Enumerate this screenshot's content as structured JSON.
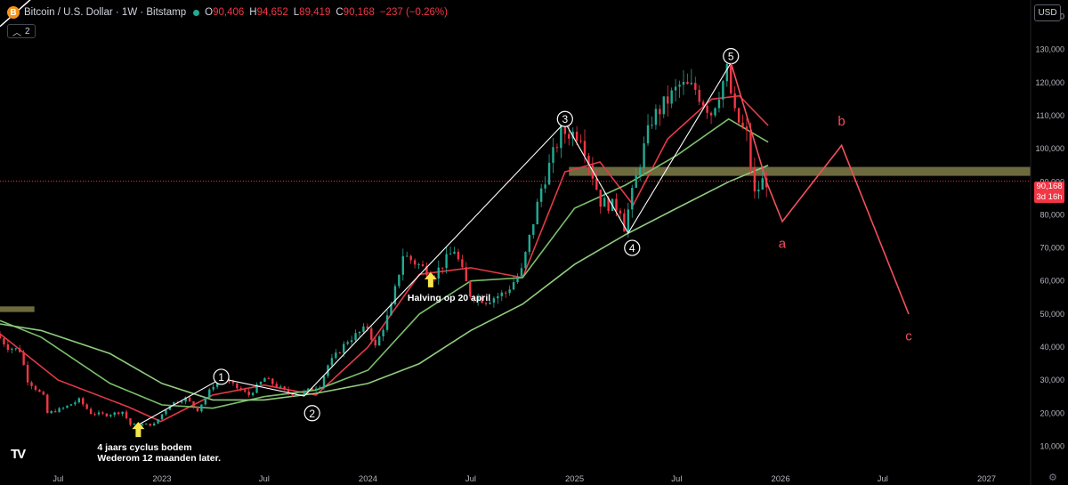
{
  "header": {
    "coin_symbol": "B",
    "title": "Bitcoin / U.S. Dollar · 1W · Bitstamp",
    "open_label": "O",
    "open": "90,406",
    "high_label": "H",
    "high": "94,652",
    "low_label": "L",
    "low": "89,419",
    "close_label": "C",
    "close": "90,168",
    "change": "−237 (−0.26%)",
    "collapse_count": "2"
  },
  "currency_button": "USD",
  "last_price": {
    "value": "90,168",
    "countdown": "3d 16h"
  },
  "colors": {
    "background": "#000000",
    "up": "#22ab94",
    "down": "#f23645",
    "ma_fast": "#e53946",
    "ma_mid": "#7bbf6a",
    "ma_slow": "#91cd7f",
    "projection": "#f0505a",
    "resistance_band": "#807c4a",
    "wave_line": "#ffffff"
  },
  "chart_data": {
    "type": "candlestick",
    "title": "Bitcoin / U.S. Dollar · 1W · Bitstamp",
    "ylim": [
      5000,
      145000
    ],
    "y_ticks": [
      10000,
      20000,
      30000,
      40000,
      50000,
      60000,
      70000,
      80000,
      90000,
      100000,
      110000,
      120000,
      130000,
      140000
    ],
    "y_tick_labels": [
      "10,000",
      "20,000",
      "30,000",
      "40,000",
      "50,000",
      "60,000",
      "70,000",
      "80,000",
      "90,000",
      "100,000",
      "110,000",
      "120,000",
      "130,000",
      "140,000"
    ],
    "xlim": [
      "2022-03-20",
      "2027-03-20"
    ],
    "x_ticks": [
      {
        "date": "2022-07-01",
        "label": "Jul"
      },
      {
        "date": "2023-01-01",
        "label": "2023"
      },
      {
        "date": "2023-07-01",
        "label": "Jul"
      },
      {
        "date": "2024-01-01",
        "label": "2024"
      },
      {
        "date": "2024-07-01",
        "label": "Jul"
      },
      {
        "date": "2025-01-01",
        "label": "2025"
      },
      {
        "date": "2025-07-01",
        "label": "Jul"
      },
      {
        "date": "2026-01-01",
        "label": "2026"
      },
      {
        "date": "2026-07-01",
        "label": "Jul"
      },
      {
        "date": "2027-01-01",
        "label": "2027"
      }
    ],
    "price_path": [
      [
        "2022-03-20",
        44000
      ],
      [
        "2022-04-10",
        40000
      ],
      [
        "2022-05-01",
        39000
      ],
      [
        "2022-05-15",
        30000
      ],
      [
        "2022-06-12",
        25000
      ],
      [
        "2022-06-19",
        20000
      ],
      [
        "2022-07-17",
        21500
      ],
      [
        "2022-08-14",
        24000
      ],
      [
        "2022-09-04",
        20000
      ],
      [
        "2022-10-02",
        19500
      ],
      [
        "2022-10-30",
        20500
      ],
      [
        "2022-11-13",
        16500
      ],
      [
        "2022-12-25",
        16600
      ],
      [
        "2023-01-22",
        22800
      ],
      [
        "2023-02-19",
        24500
      ],
      [
        "2023-03-12",
        21000
      ],
      [
        "2023-04-09",
        28500
      ],
      [
        "2023-04-23",
        30500
      ],
      [
        "2023-06-11",
        25500
      ],
      [
        "2023-07-09",
        30500
      ],
      [
        "2023-08-20",
        26000
      ],
      [
        "2023-09-10",
        25900
      ],
      [
        "2023-10-15",
        28500
      ],
      [
        "2023-10-29",
        34500
      ],
      [
        "2023-12-03",
        42000
      ],
      [
        "2024-01-07",
        46000
      ],
      [
        "2024-01-21",
        40000
      ],
      [
        "2024-02-18",
        52000
      ],
      [
        "2024-03-10",
        68000
      ],
      [
        "2024-04-14",
        64000
      ],
      [
        "2024-05-05",
        62000
      ],
      [
        "2024-06-09",
        69500
      ],
      [
        "2024-07-07",
        56000
      ],
      [
        "2024-08-04",
        54000
      ],
      [
        "2024-09-08",
        56500
      ],
      [
        "2024-10-06",
        63000
      ],
      [
        "2024-11-10",
        88000
      ],
      [
        "2024-12-15",
        105000
      ],
      [
        "2025-01-19",
        104500
      ],
      [
        "2025-02-23",
        84000
      ],
      [
        "2025-03-30",
        82000
      ],
      [
        "2025-04-06",
        76500
      ],
      [
        "2025-05-04",
        96000
      ],
      [
        "2025-05-25",
        109000
      ],
      [
        "2025-07-13",
        119000
      ],
      [
        "2025-08-10",
        118000
      ],
      [
        "2025-09-07",
        111000
      ],
      [
        "2025-10-05",
        123500
      ],
      [
        "2025-10-19",
        110000
      ],
      [
        "2025-11-09",
        104000
      ],
      [
        "2025-11-23",
        86000
      ],
      [
        "2025-12-07",
        90168
      ]
    ],
    "series": [
      {
        "name": "",
        "color": "#e53946",
        "points": [
          [
            "2022-03-20",
            44000
          ],
          [
            "2022-07-01",
            30000
          ],
          [
            "2022-11-01",
            22000
          ],
          [
            "2022-12-30",
            17500
          ],
          [
            "2023-04-01",
            25500
          ],
          [
            "2023-07-01",
            28500
          ],
          [
            "2023-10-01",
            25500
          ],
          [
            "2024-01-01",
            40000
          ],
          [
            "2024-04-01",
            62000
          ],
          [
            "2024-07-01",
            64000
          ],
          [
            "2024-10-01",
            61000
          ],
          [
            "2024-12-15",
            93000
          ],
          [
            "2025-02-15",
            96000
          ],
          [
            "2025-04-15",
            83000
          ],
          [
            "2025-06-15",
            103000
          ],
          [
            "2025-09-01",
            115000
          ],
          [
            "2025-10-20",
            116000
          ],
          [
            "2025-12-10",
            107000
          ]
        ]
      },
      {
        "name": "",
        "color": "#7bbf6a",
        "points": [
          [
            "2022-03-20",
            48000
          ],
          [
            "2022-06-01",
            43000
          ],
          [
            "2022-10-01",
            29000
          ],
          [
            "2023-01-01",
            22500
          ],
          [
            "2023-04-01",
            21500
          ],
          [
            "2023-07-01",
            25000
          ],
          [
            "2023-10-01",
            27000
          ],
          [
            "2024-01-01",
            33000
          ],
          [
            "2024-04-01",
            50000
          ],
          [
            "2024-07-01",
            60000
          ],
          [
            "2024-10-01",
            61000
          ],
          [
            "2025-01-01",
            82000
          ],
          [
            "2025-04-01",
            89000
          ],
          [
            "2025-07-01",
            98000
          ],
          [
            "2025-10-01",
            109000
          ],
          [
            "2025-12-10",
            102000
          ]
        ]
      },
      {
        "name": "",
        "color": "#91cd7f",
        "points": [
          [
            "2022-03-20",
            47000
          ],
          [
            "2022-06-01",
            45000
          ],
          [
            "2022-10-01",
            38000
          ],
          [
            "2023-01-01",
            29000
          ],
          [
            "2023-04-01",
            24000
          ],
          [
            "2023-07-01",
            24000
          ],
          [
            "2023-10-01",
            26000
          ],
          [
            "2024-01-01",
            29000
          ],
          [
            "2024-04-01",
            35000
          ],
          [
            "2024-07-01",
            45000
          ],
          [
            "2024-10-01",
            53000
          ],
          [
            "2025-01-01",
            65000
          ],
          [
            "2025-04-01",
            74000
          ],
          [
            "2025-07-01",
            82000
          ],
          [
            "2025-10-01",
            90000
          ],
          [
            "2025-12-10",
            95000
          ]
        ]
      }
    ],
    "wave_lines": [
      [
        [
          "2022-11-13",
          15800
        ],
        [
          "2023-04-16",
          30500
        ],
        [
          "2023-09-10",
          25200
        ],
        [
          "2024-12-15",
          108000
        ],
        [
          "2025-04-06",
          74500
        ],
        [
          "2025-10-05",
          126000
        ]
      ]
    ],
    "wave_labels": [
      {
        "date": "2023-04-16",
        "price": 31000,
        "text": "1"
      },
      {
        "date": "2023-09-24",
        "price": 20000,
        "text": "2"
      },
      {
        "date": "2024-12-15",
        "price": 109000,
        "text": "3"
      },
      {
        "date": "2025-04-13",
        "price": 70000,
        "text": "4"
      },
      {
        "date": "2025-10-05",
        "price": 128000,
        "text": "5"
      }
    ],
    "projection_lines": [
      [
        [
          "2025-10-05",
          126000
        ],
        [
          "2025-12-07",
          90000
        ],
        [
          "2026-01-04",
          78000
        ],
        [
          "2026-04-19",
          101000
        ],
        [
          "2026-08-16",
          50000
        ]
      ]
    ],
    "projection_labels": [
      {
        "date": "2026-01-04",
        "price": 70000,
        "text": "a"
      },
      {
        "date": "2026-04-19",
        "price": 107000,
        "text": "b"
      },
      {
        "date": "2026-08-16",
        "price": 42000,
        "text": "c"
      }
    ],
    "resistance_bands": [
      {
        "from": "2024-12-22",
        "to": "2027-03-20",
        "low": 91800,
        "high": 94500
      },
      {
        "from": "2022-03-20",
        "to": "2022-05-20",
        "low": 50600,
        "high": 52300
      }
    ],
    "trendline": [
      [
        "2022-03-20",
        137000
      ],
      [
        "2022-06-01",
        148000
      ]
    ],
    "annotations": [
      {
        "date": "2022-11-20",
        "price": 15200,
        "arrow": true,
        "lines": [
          "4 jaars cyclus bodem",
          "Wederom 12 maanden later."
        ]
      },
      {
        "date": "2024-04-21",
        "price": 60500,
        "arrow": true,
        "lines": [
          "Halving op 20 april"
        ]
      }
    ]
  }
}
